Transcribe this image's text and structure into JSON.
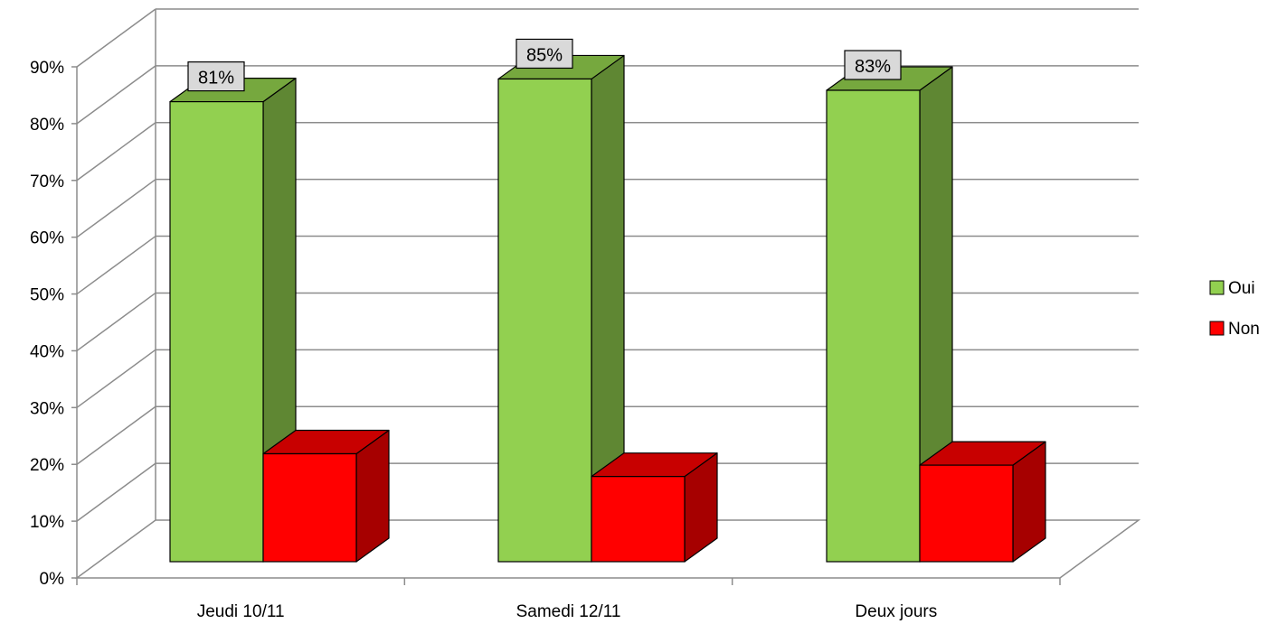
{
  "chart_data": {
    "type": "bar",
    "categories": [
      "Jeudi 10/11",
      "Samedi 12/11",
      "Deux jours"
    ],
    "series": [
      {
        "name": "Oui",
        "values": [
          81,
          85,
          83
        ],
        "color": "#92d050",
        "side_color": "#5f8733",
        "top_color": "#76a83e"
      },
      {
        "name": "Non",
        "values": [
          19,
          15,
          17
        ],
        "color": "#ff0000",
        "side_color": "#a60000",
        "top_color": "#c80000"
      }
    ],
    "data_labels": [
      "81%",
      "85%",
      "83%"
    ],
    "ylim": [
      0,
      90
    ],
    "yticks": [
      "0%",
      "10%",
      "20%",
      "30%",
      "40%",
      "50%",
      "60%",
      "70%",
      "80%",
      "90%"
    ],
    "grid": true,
    "legend": "right",
    "title": "",
    "xlabel": "",
    "ylabel": ""
  }
}
